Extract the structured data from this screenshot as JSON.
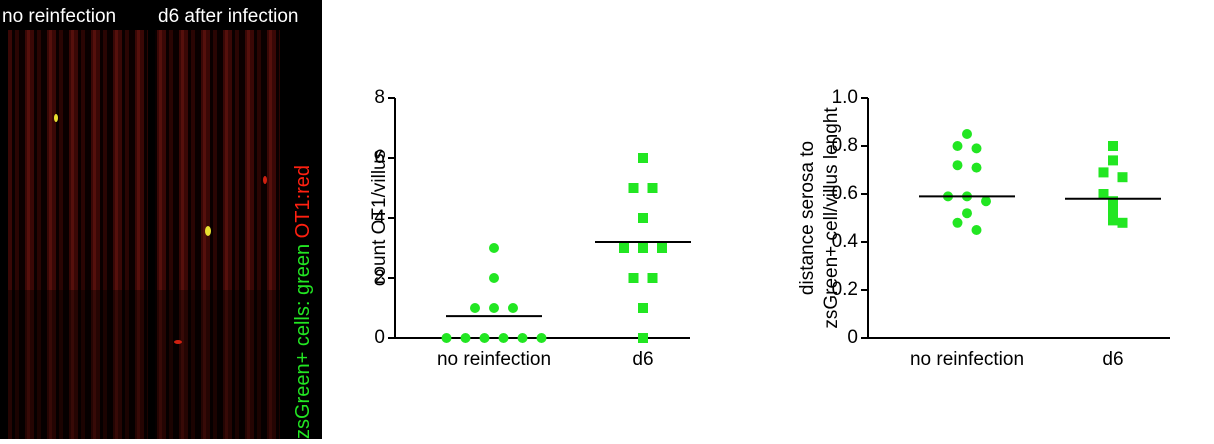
{
  "image_panel": {
    "labels": [
      "no reinfection",
      "d6 after infection"
    ],
    "caption": {
      "green_part": "zsGreen+ cells: green",
      "red_part": "OT1:red"
    }
  },
  "chart_data": [
    {
      "type": "dot",
      "ylabel": [
        "count OT1/villus"
      ],
      "categories": [
        "no reinfection",
        "d6"
      ],
      "groups": [
        {
          "values": [
            3,
            2,
            1,
            1,
            1,
            0,
            0,
            0,
            0,
            0,
            0
          ],
          "center_line": 0.73,
          "marker": "circle",
          "color": "#22e622"
        },
        {
          "values": [
            6,
            5,
            5,
            4,
            3,
            3,
            3,
            2,
            2,
            1,
            0
          ],
          "center_line": 3.2,
          "marker": "square",
          "color": "#22e622"
        }
      ],
      "ylim": [
        0,
        8
      ],
      "yticks": [
        0,
        2,
        4,
        6,
        8
      ]
    },
    {
      "type": "dot",
      "ylabel": [
        "distance serosa to",
        "zsGreen+ cell/villus lenght"
      ],
      "categories": [
        "no reinfection",
        "d6"
      ],
      "groups": [
        {
          "values": [
            0.85,
            0.8,
            0.79,
            0.72,
            0.71,
            0.59,
            0.59,
            0.57,
            0.52,
            0.48,
            0.45
          ],
          "center_line": 0.59,
          "marker": "circle",
          "color": "#22e622"
        },
        {
          "values": [
            0.8,
            0.74,
            0.69,
            0.67,
            0.6,
            0.57,
            0.56,
            0.53,
            0.52,
            0.49,
            0.48
          ],
          "center_line": 0.58,
          "marker": "square",
          "color": "#22e622"
        }
      ],
      "ylim": [
        0,
        1
      ],
      "yticks": [
        0,
        0.2,
        0.4,
        0.6,
        0.8,
        {
          "value": 1,
          "label": "1.0"
        }
      ]
    }
  ]
}
